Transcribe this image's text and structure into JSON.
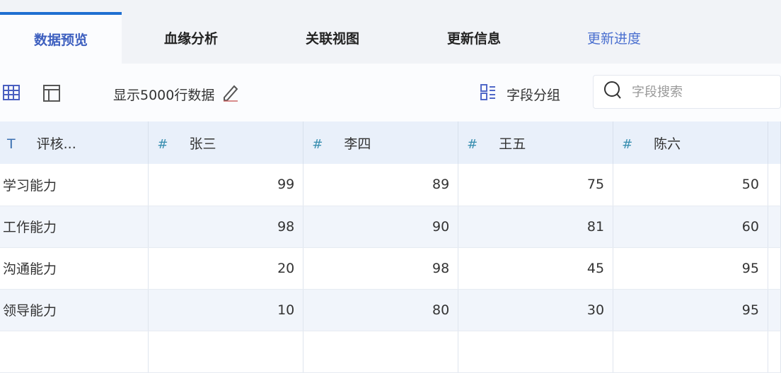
{
  "tabs": [
    {
      "label": "数据预览",
      "active": true
    },
    {
      "label": "血缘分析"
    },
    {
      "label": "关联视图"
    },
    {
      "label": "更新信息"
    },
    {
      "label": "更新进度"
    }
  ],
  "toolbar": {
    "grid_icon": "grid-icon",
    "layout_icon": "layout-icon",
    "rows_label": "显示5000行数据",
    "edit_icon": "pencil-icon",
    "group_label": "字段分组",
    "search_placeholder": "字段搜索"
  },
  "table": {
    "columns": [
      {
        "type": "T",
        "name": "评核..."
      },
      {
        "type": "#",
        "name": "张三"
      },
      {
        "type": "#",
        "name": "李四"
      },
      {
        "type": "#",
        "name": "王五"
      },
      {
        "type": "#",
        "name": "陈六"
      }
    ],
    "rows": [
      [
        "学习能力",
        "99",
        "89",
        "75",
        "50"
      ],
      [
        "工作能力",
        "98",
        "90",
        "81",
        "60"
      ],
      [
        "沟通能力",
        "20",
        "98",
        "45",
        "95"
      ],
      [
        "领导能力",
        "10",
        "80",
        "30",
        "95"
      ]
    ]
  },
  "colors": {
    "accent": "#1f6fd1",
    "header_bg": "#e9f0fa"
  }
}
